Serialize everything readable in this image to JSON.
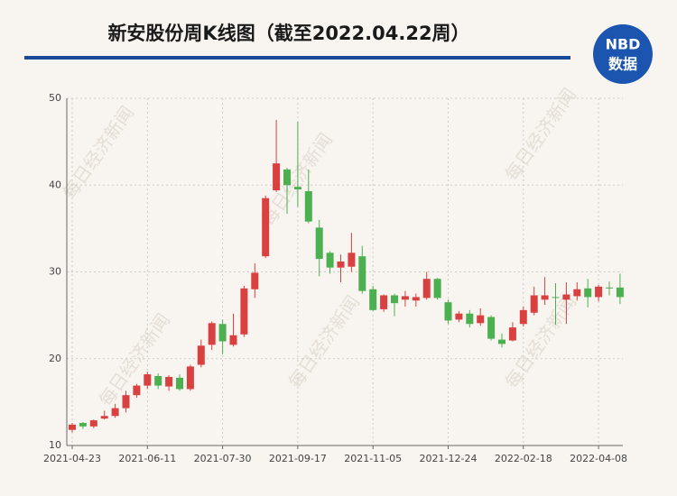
{
  "chart_data": {
    "type": "candlestick",
    "title": "新安股份周K线图（截至2022.04.22周）",
    "logo": {
      "line1": "NBD",
      "line2": "数据"
    },
    "watermark": "每日经济新闻",
    "categories": [
      "2021-04-23",
      null,
      null,
      null,
      null,
      null,
      null,
      "2021-06-11",
      null,
      null,
      null,
      null,
      null,
      null,
      "2021-07-30",
      null,
      null,
      null,
      null,
      null,
      null,
      "2021-09-17",
      null,
      null,
      null,
      null,
      null,
      null,
      "2021-11-05",
      null,
      null,
      null,
      null,
      null,
      null,
      "2021-12-24",
      null,
      null,
      null,
      null,
      null,
      null,
      "2022-02-18",
      null,
      null,
      null,
      null,
      null,
      null,
      "2022-04-08",
      null,
      null
    ],
    "open": [
      11.8,
      12.6,
      12.2,
      13.1,
      13.4,
      14.3,
      15.8,
      16.9,
      18.0,
      16.8,
      17.8,
      16.5,
      19.3,
      21.6,
      24.0,
      21.6,
      22.8,
      28.0,
      31.8,
      39.4,
      41.8,
      39.8,
      39.3,
      35.1,
      32.2,
      30.5,
      30.6,
      31.8,
      28.0,
      25.7,
      27.3,
      26.8,
      26.7,
      27.0,
      29.2,
      26.5,
      24.5,
      25.2,
      24.1,
      24.8,
      22.2,
      22.1,
      24.0,
      25.3,
      26.8,
      27.1,
      26.8,
      27.2,
      28.1,
      27.1,
      28.2,
      28.2
    ],
    "high": [
      12.6,
      12.7,
      13.0,
      14.0,
      14.8,
      16.3,
      17.1,
      18.5,
      18.3,
      18.1,
      18.2,
      19.3,
      22.2,
      24.3,
      24.5,
      25.2,
      28.4,
      31.0,
      38.8,
      47.5,
      42.0,
      47.3,
      41.8,
      36.0,
      32.4,
      32.0,
      34.5,
      33.0,
      28.4,
      27.4,
      27.5,
      27.8,
      27.5,
      30.0,
      29.3,
      26.8,
      25.5,
      25.6,
      25.8,
      25.0,
      22.9,
      24.2,
      26.0,
      28.3,
      29.4,
      28.7,
      28.8,
      28.8,
      29.2,
      28.5,
      28.9,
      29.8
    ],
    "low": [
      11.5,
      11.9,
      12.0,
      13.0,
      13.2,
      13.8,
      15.5,
      16.5,
      16.5,
      16.3,
      16.3,
      16.3,
      19.0,
      21.0,
      20.5,
      21.4,
      22.5,
      27.0,
      31.6,
      39.2,
      36.7,
      37.5,
      35.6,
      29.5,
      29.8,
      28.8,
      30.0,
      27.5,
      25.5,
      25.4,
      24.9,
      26.0,
      26.0,
      26.8,
      26.8,
      24.0,
      24.2,
      23.6,
      23.8,
      22.1,
      21.3,
      22.0,
      23.7,
      25.0,
      26.2,
      23.9,
      24.0,
      26.7,
      25.9,
      26.6,
      27.3,
      26.3
    ],
    "close": [
      12.4,
      12.2,
      12.9,
      13.4,
      14.3,
      15.8,
      16.9,
      18.2,
      16.9,
      17.9,
      16.5,
      19.1,
      21.5,
      24.1,
      22.0,
      22.7,
      28.1,
      29.9,
      38.5,
      42.5,
      40.0,
      39.5,
      35.8,
      31.5,
      30.5,
      31.2,
      32.2,
      27.8,
      25.6,
      27.3,
      26.4,
      27.2,
      27.1,
      29.2,
      27.0,
      24.4,
      25.2,
      24.0,
      25.0,
      22.3,
      21.7,
      23.6,
      25.6,
      27.3,
      27.3,
      27.0,
      27.4,
      28.0,
      27.1,
      28.3,
      28.1,
      27.1
    ],
    "up_color": "#d94040",
    "down_color": "#4caf50",
    "ylim": [
      10,
      50
    ],
    "yticks": [
      10,
      20,
      30,
      40,
      50
    ],
    "grid": true
  }
}
